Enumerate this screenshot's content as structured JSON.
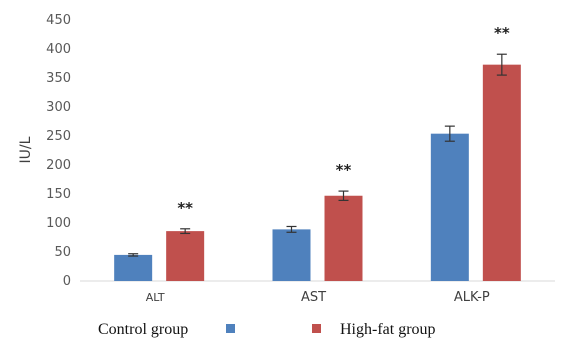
{
  "chart_data": {
    "type": "bar",
    "categories": [
      "ALT",
      "AST",
      "ALK-P"
    ],
    "ylabel": "IU/L",
    "ylim": [
      0,
      450
    ],
    "yticks": [
      0,
      50,
      100,
      150,
      200,
      250,
      300,
      350,
      400,
      450
    ],
    "grid": false,
    "legend_position": "bottom",
    "series": [
      {
        "name": "Control group",
        "color": "#4f81bd",
        "values": [
          45,
          89,
          254
        ],
        "errors": [
          2,
          5,
          13
        ]
      },
      {
        "name": "High-fat group",
        "color": "#c0504d",
        "values": [
          86,
          147,
          373
        ],
        "errors": [
          4,
          8,
          18
        ]
      }
    ],
    "annotations": [
      "**",
      "**",
      "**"
    ]
  }
}
